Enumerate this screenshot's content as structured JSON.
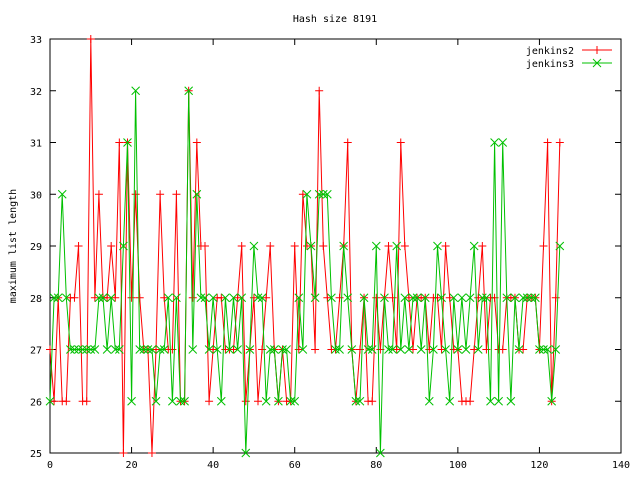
{
  "chart_data": {
    "type": "line",
    "title": "Hash size 8191",
    "xlabel": "",
    "ylabel": "maximum list length",
    "xlim": [
      0,
      140
    ],
    "ylim": [
      25,
      33
    ],
    "x_ticks": [
      0,
      20,
      40,
      60,
      80,
      100,
      120,
      140
    ],
    "y_ticks": [
      25,
      26,
      27,
      28,
      29,
      30,
      31,
      32,
      33
    ],
    "grid": false,
    "legend": "top-right",
    "markers": true,
    "series": [
      {
        "name": "jenkins2",
        "color": "#ff0000",
        "marker": "plus",
        "x": [
          0,
          1,
          2,
          3,
          4,
          5,
          6,
          7,
          8,
          9,
          10,
          11,
          12,
          13,
          14,
          15,
          16,
          17,
          18,
          19,
          20,
          21,
          22,
          23,
          24,
          25,
          26,
          27,
          28,
          29,
          30,
          31,
          32,
          33,
          34,
          35,
          36,
          37,
          38,
          39,
          40,
          41,
          42,
          43,
          44,
          45,
          46,
          47,
          48,
          49,
          50,
          51,
          52,
          53,
          54,
          55,
          56,
          57,
          58,
          59,
          60,
          61,
          62,
          63,
          64,
          65,
          66,
          67,
          68,
          69,
          70,
          71,
          72,
          73,
          74,
          75,
          76,
          77,
          78,
          79,
          80,
          81,
          82,
          83,
          84,
          85,
          86,
          87,
          88,
          89,
          90,
          91,
          92,
          93,
          94,
          95,
          96,
          97,
          98,
          99,
          100,
          101,
          102,
          103,
          104,
          105,
          106,
          107,
          108,
          109,
          110,
          111,
          112,
          113,
          114,
          115,
          116,
          117,
          118,
          119,
          120,
          121,
          122,
          123,
          124,
          125
        ],
        "y": [
          27,
          26,
          28,
          26,
          26,
          28,
          28,
          29,
          26,
          26,
          33,
          28,
          30,
          28,
          28,
          29,
          28,
          31,
          25,
          31,
          28,
          30,
          28,
          27,
          27,
          25,
          27,
          30,
          28,
          27,
          27,
          30,
          26,
          26,
          32,
          28,
          31,
          29,
          29,
          26,
          27,
          28,
          28,
          27,
          27,
          27,
          28,
          29,
          26,
          27,
          28,
          26,
          27,
          28,
          29,
          27,
          26,
          27,
          26,
          26,
          29,
          27,
          30,
          29,
          29,
          27,
          32,
          29,
          28,
          27,
          27,
          28,
          29,
          31,
          27,
          26,
          27,
          28,
          26,
          26,
          28,
          27,
          28,
          29,
          28,
          27,
          31,
          29,
          28,
          27,
          28,
          28,
          28,
          27,
          28,
          28,
          27,
          29,
          28,
          27,
          27,
          26,
          26,
          26,
          27,
          28,
          29,
          27,
          28,
          28,
          27,
          27,
          28,
          28,
          28,
          27,
          27,
          28,
          28,
          28,
          27,
          29,
          31,
          26,
          28,
          31
        ]
      },
      {
        "name": "jenkins3",
        "color": "#00c000",
        "marker": "x",
        "x": [
          0,
          1,
          2,
          3,
          4,
          5,
          6,
          7,
          8,
          9,
          10,
          11,
          12,
          13,
          14,
          15,
          16,
          17,
          18,
          19,
          20,
          21,
          22,
          23,
          24,
          25,
          26,
          27,
          28,
          29,
          30,
          31,
          32,
          33,
          34,
          35,
          36,
          37,
          38,
          39,
          40,
          41,
          42,
          43,
          44,
          45,
          46,
          47,
          48,
          49,
          50,
          51,
          52,
          53,
          54,
          55,
          56,
          57,
          58,
          59,
          60,
          61,
          62,
          63,
          64,
          65,
          66,
          67,
          68,
          69,
          70,
          71,
          72,
          73,
          74,
          75,
          76,
          77,
          78,
          79,
          80,
          81,
          82,
          83,
          84,
          85,
          86,
          87,
          88,
          89,
          90,
          91,
          92,
          93,
          94,
          95,
          96,
          97,
          98,
          99,
          100,
          101,
          102,
          103,
          104,
          105,
          106,
          107,
          108,
          109,
          110,
          111,
          112,
          113,
          114,
          115,
          116,
          117,
          118,
          119,
          120,
          121,
          122,
          123,
          124,
          125
        ],
        "y": [
          26,
          28,
          28,
          30,
          28,
          27,
          27,
          27,
          27,
          27,
          27,
          27,
          28,
          28,
          27,
          28,
          27,
          27,
          29,
          31,
          26,
          32,
          27,
          27,
          27,
          27,
          26,
          27,
          27,
          28,
          26,
          28,
          26,
          26,
          32,
          27,
          30,
          28,
          28,
          27,
          28,
          27,
          26,
          28,
          27,
          28,
          27,
          28,
          25,
          27,
          29,
          28,
          28,
          26,
          27,
          27,
          26,
          27,
          27,
          26,
          26,
          28,
          27,
          30,
          29,
          28,
          30,
          30,
          30,
          28,
          27,
          27,
          29,
          28,
          27,
          26,
          26,
          28,
          27,
          27,
          29,
          25,
          28,
          27,
          27,
          29,
          27,
          28,
          27,
          28,
          28,
          27,
          28,
          26,
          27,
          29,
          28,
          27,
          26,
          28,
          27,
          28,
          27,
          28,
          29,
          27,
          28,
          28,
          26,
          31,
          26,
          31,
          28,
          26,
          28,
          27,
          28,
          28,
          28,
          28,
          27,
          27,
          27,
          26,
          27,
          29
        ]
      }
    ]
  }
}
